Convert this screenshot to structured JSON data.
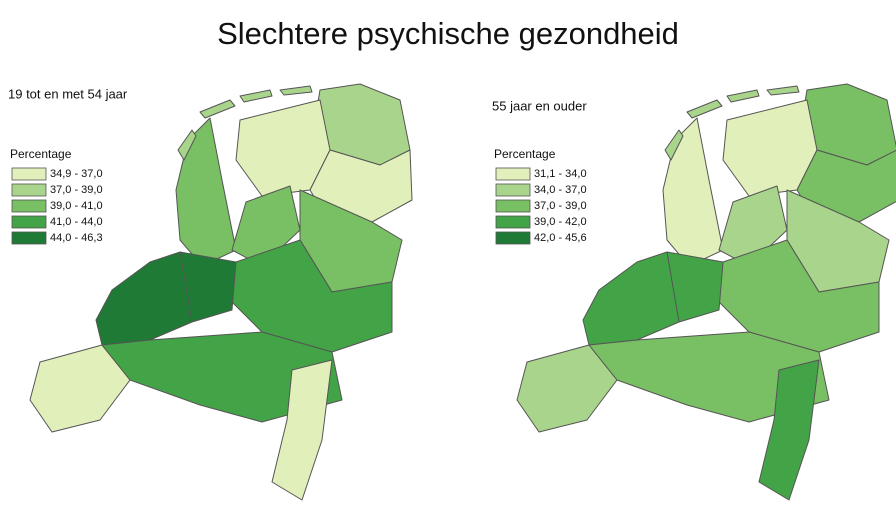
{
  "title": "Slechtere psychische gezondheid",
  "panels": [
    {
      "subtitle": "19 tot en met 54 jaar",
      "legend_title": "Percentage",
      "legend": [
        {
          "label": "34,9 - 37,0",
          "color": "#e1efba"
        },
        {
          "label": "37,0 - 39,0",
          "color": "#a9d48b"
        },
        {
          "label": "39,0 - 41,0",
          "color": "#79bf63"
        },
        {
          "label": "41,0 - 44,0",
          "color": "#43a447"
        },
        {
          "label": "44,0 - 46,3",
          "color": "#1f7a36"
        }
      ]
    },
    {
      "subtitle": "55 jaar en ouder",
      "legend_title": "Percentage",
      "legend": [
        {
          "label": "31,1 - 34,0",
          "color": "#e1efba"
        },
        {
          "label": "34,0 - 37,0",
          "color": "#a9d48b"
        },
        {
          "label": "37,0 - 39,0",
          "color": "#79bf63"
        },
        {
          "label": "39,0 - 42,0",
          "color": "#43a447"
        },
        {
          "label": "42,0 - 45,6",
          "color": "#1f7a36"
        }
      ]
    }
  ]
}
